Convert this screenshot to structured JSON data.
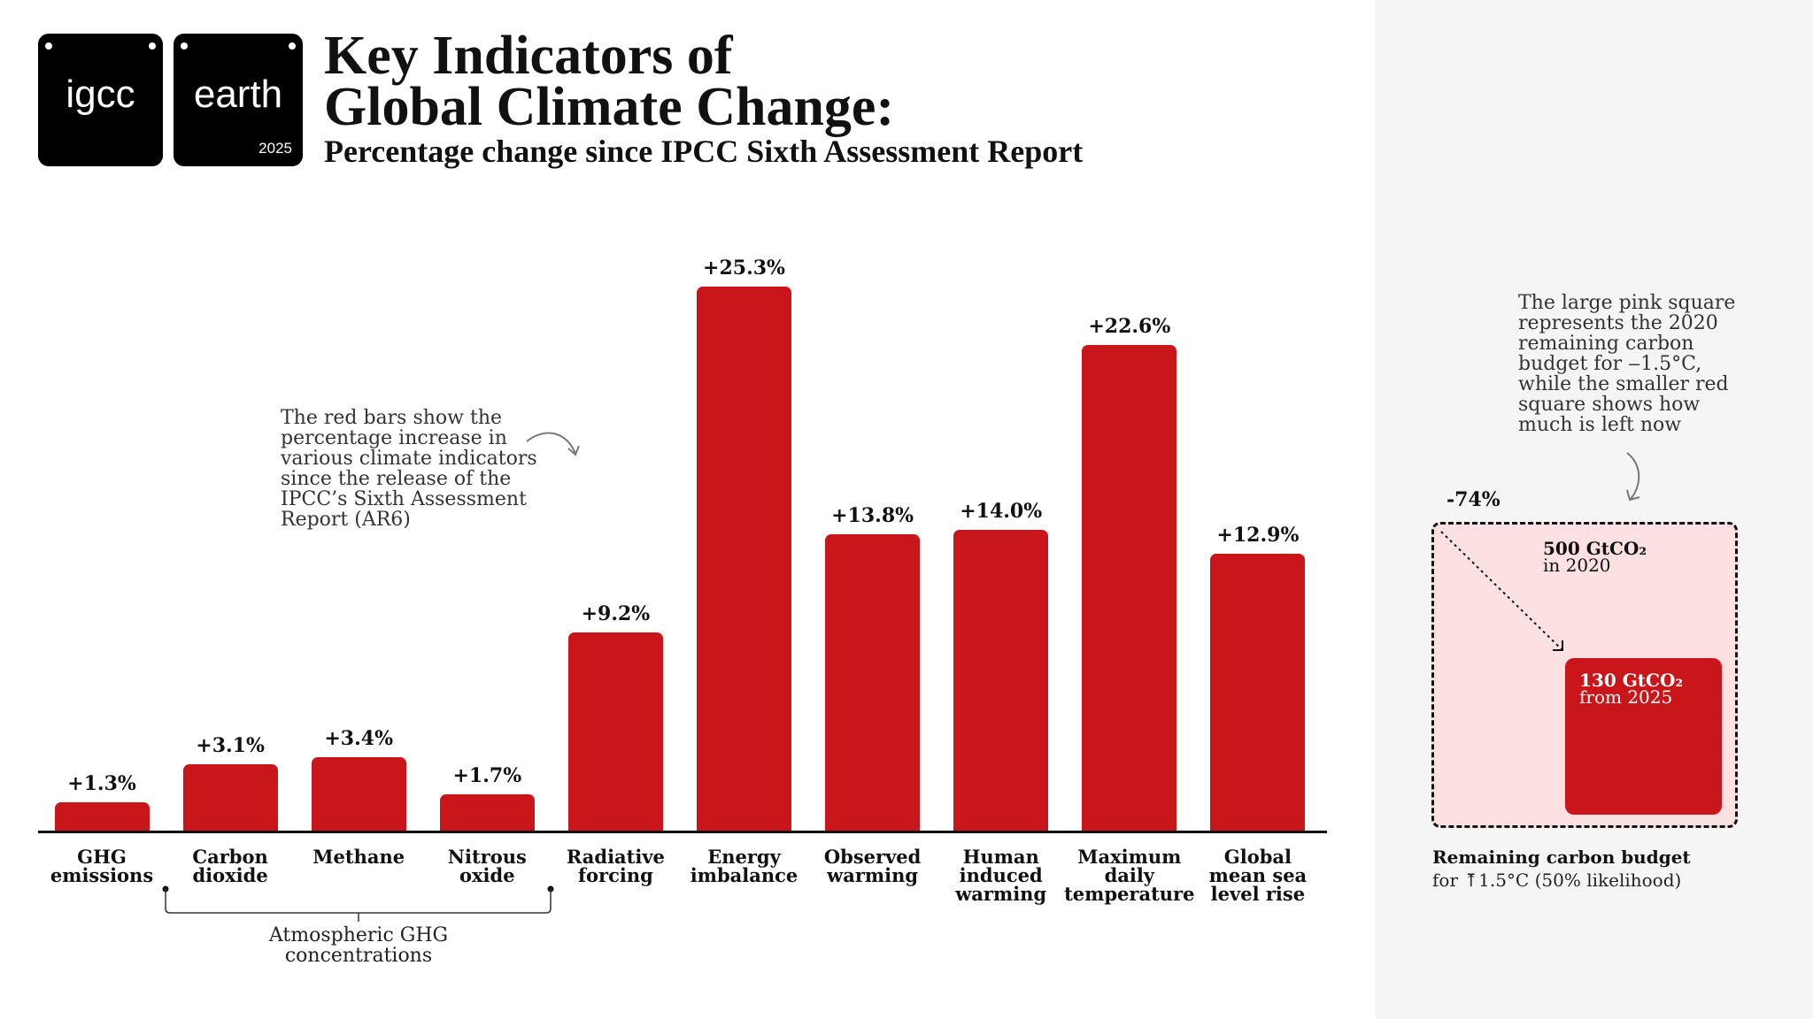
{
  "logos": {
    "left": "igcc",
    "right": "earth",
    "year": "2025"
  },
  "header": {
    "title_line1": "Key Indicators of",
    "title_line2": "Global Climate Change:",
    "subtitle": "Percentage change since IPCC Sixth Assessment Report"
  },
  "colors": {
    "bar": "#c8161a",
    "pink": "#fde0e1",
    "panel": "#f5f5f5"
  },
  "chart_data": {
    "type": "bar",
    "categories": [
      "GHG emissions",
      "Carbon dioxide",
      "Methane",
      "Nitrous oxide",
      "Radiative forcing",
      "Energy imbalance",
      "Observed warming",
      "Human induced warming",
      "Maximum daily temperature",
      "Global mean sea level rise"
    ],
    "category_lines": [
      [
        "GHG",
        "emissions"
      ],
      [
        "Carbon",
        "dioxide"
      ],
      [
        "Methane"
      ],
      [
        "Nitrous",
        "oxide"
      ],
      [
        "Radiative",
        "forcing"
      ],
      [
        "Energy",
        "imbalance"
      ],
      [
        "Observed",
        "warming"
      ],
      [
        "Human",
        "induced",
        "warming"
      ],
      [
        "Maximum",
        "daily",
        "temperature"
      ],
      [
        "Global",
        "mean sea",
        "level rise"
      ]
    ],
    "values": [
      1.3,
      3.1,
      3.4,
      1.7,
      9.2,
      25.3,
      13.8,
      14.0,
      22.6,
      12.9
    ],
    "data_labels": [
      "+1.3%",
      "+3.1%",
      "+3.4%",
      "+1.7%",
      "+9.2%",
      "+25.3%",
      "+13.8%",
      "+14.0%",
      "+22.6%",
      "+12.9%"
    ],
    "grid": false,
    "group_label": [
      "Atmospheric GHG",
      "concentrations"
    ],
    "annotation": [
      "The red bars show the",
      "percentage increase in",
      "various climate indicators",
      "since the release of the",
      "IPCC’s Sixth Assessment",
      "Report (AR6)"
    ]
  },
  "budget": {
    "note": [
      "The large pink square",
      "represents the 2020",
      "remaining carbon",
      "budget for ‒1.5°C,",
      "while the smaller red",
      "square shows how",
      "much is left now"
    ],
    "change": "-74%",
    "big_value": "500 GtCO₂",
    "big_sub": "in 2020",
    "small_value": "130 GtCO₂",
    "small_sub": "from 2025",
    "caption_title": "Remaining carbon budget",
    "caption_sub": "for ⤒1.5°C (50% likelihood)",
    "values_gtco2": [
      500,
      130
    ]
  }
}
